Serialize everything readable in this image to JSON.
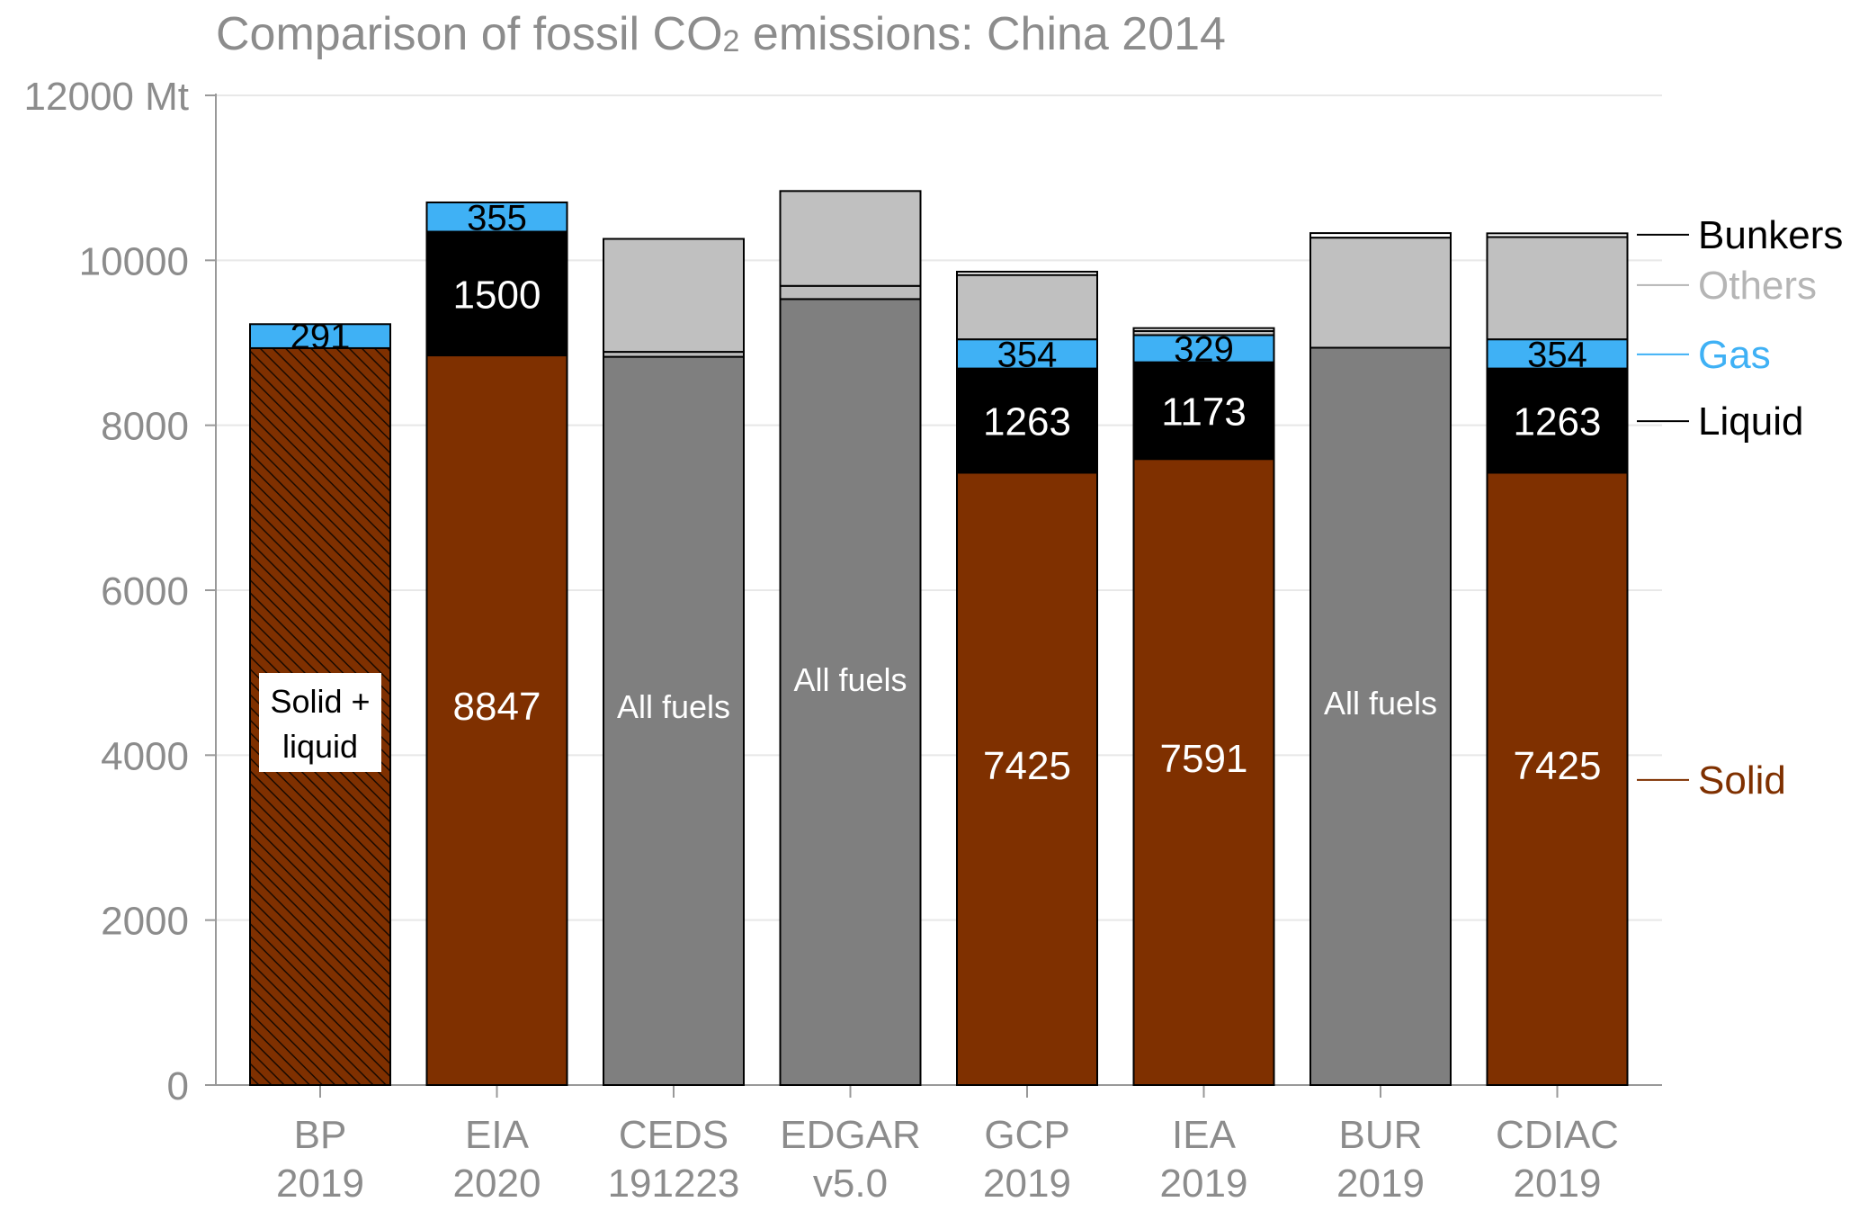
{
  "chart_data": {
    "type": "bar",
    "stacked": true,
    "title": {
      "prefix": "Comparison of fossil CO",
      "subscript": "2",
      "suffix": " emissions: China 2014"
    },
    "y_unit_label": "12000 Mt",
    "ylim": [
      0,
      12000
    ],
    "yticks": [
      0,
      2000,
      4000,
      6000,
      8000,
      10000,
      12000
    ],
    "ytick_labels": [
      "0",
      "2000",
      "4000",
      "6000",
      "8000",
      "10000",
      "12000 Mt"
    ],
    "grid": "horizontal",
    "colors": {
      "solid": "#7f3000",
      "liquid": "#000000",
      "gas": "#3fb1f5",
      "others": "#c0c0c0",
      "all_fuels": "#7f7f7f",
      "bunkers": "#ffffff",
      "axis_text": "#8c8c8c"
    },
    "categories": [
      {
        "label": [
          "BP",
          "2019"
        ],
        "segments": [
          {
            "type": "solid_liquid",
            "value": 8935,
            "label": "Solid +\nliquid"
          },
          {
            "type": "gas",
            "value": 291,
            "label": "291"
          }
        ]
      },
      {
        "label": [
          "EIA",
          "2020"
        ],
        "segments": [
          {
            "type": "solid",
            "value": 8847,
            "label": "8847"
          },
          {
            "type": "liquid",
            "value": 1500,
            "label": "1500"
          },
          {
            "type": "gas",
            "value": 355,
            "label": "355"
          }
        ]
      },
      {
        "label": [
          "CEDS",
          "191223"
        ],
        "segments": [
          {
            "type": "all_fuels",
            "value": 8830,
            "label": "All fuels"
          },
          {
            "type": "thin",
            "value": 60
          },
          {
            "type": "others",
            "value": 1370
          }
        ]
      },
      {
        "label": [
          "EDGAR",
          "v5.0"
        ],
        "segments": [
          {
            "type": "all_fuels",
            "value": 9530,
            "label": "All fuels"
          },
          {
            "type": "thin",
            "value": 160
          },
          {
            "type": "others",
            "value": 1150
          }
        ]
      },
      {
        "label": [
          "GCP",
          "2019"
        ],
        "segments": [
          {
            "type": "solid",
            "value": 7425,
            "label": "7425"
          },
          {
            "type": "liquid",
            "value": 1263,
            "label": "1263"
          },
          {
            "type": "gas",
            "value": 354,
            "label": "354"
          },
          {
            "type": "others",
            "value": 780
          },
          {
            "type": "bunkers",
            "value": 40
          }
        ]
      },
      {
        "label": [
          "IEA",
          "2019"
        ],
        "segments": [
          {
            "type": "solid",
            "value": 7591,
            "label": "7591"
          },
          {
            "type": "liquid",
            "value": 1173,
            "label": "1173"
          },
          {
            "type": "gas",
            "value": 329,
            "label": "329"
          },
          {
            "type": "others",
            "value": 50
          },
          {
            "type": "bunkers",
            "value": 35
          }
        ]
      },
      {
        "label": [
          "BUR",
          "2019"
        ],
        "segments": [
          {
            "type": "all_fuels",
            "value": 8940,
            "label": "All fuels"
          },
          {
            "type": "others",
            "value": 1335
          },
          {
            "type": "bunkers",
            "value": 55
          }
        ]
      },
      {
        "label": [
          "CDIAC",
          "2019"
        ],
        "segments": [
          {
            "type": "solid",
            "value": 7425,
            "label": "7425"
          },
          {
            "type": "liquid",
            "value": 1263,
            "label": "1263"
          },
          {
            "type": "gas",
            "value": 354,
            "label": "354"
          },
          {
            "type": "others",
            "value": 1240
          },
          {
            "type": "bunkers",
            "value": 45
          }
        ]
      }
    ],
    "legend": [
      {
        "name": "Bunkers",
        "color": "#000000",
        "at_value": 10310
      },
      {
        "name": "Others",
        "color": "#b5b5b5",
        "at_value": 9700
      },
      {
        "name": "Gas",
        "color": "#3fb1f5",
        "at_value": 8860
      },
      {
        "name": "Liquid",
        "color": "#000000",
        "at_value": 8050
      },
      {
        "name": "Solid",
        "color": "#7f3000",
        "at_value": 3700
      }
    ]
  }
}
